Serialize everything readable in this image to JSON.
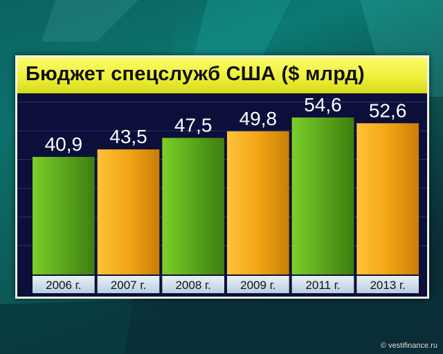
{
  "header": {
    "title": "Бюджет спецслужб США ($ млрд)"
  },
  "footer": {
    "credit": "© vestifinance.ru"
  },
  "colors": {
    "green": "#5aa61c",
    "orange": "#f2a516",
    "title_bg": "#eef03a",
    "panel_bg": "#0b0f3a",
    "label_bg": "#cfe0ee"
  },
  "chart_data": {
    "type": "bar",
    "title": "Бюджет спецслужб США ($ млрд)",
    "categories": [
      "2006 г.",
      "2007 г.",
      "2008 г.",
      "2009 г.",
      "2011 г.",
      "2013 г."
    ],
    "values": [
      40.9,
      43.5,
      47.5,
      49.8,
      54.6,
      52.6
    ],
    "value_labels": [
      "40,9",
      "43,5",
      "47,5",
      "49,8",
      "54,6",
      "52,6"
    ],
    "bar_colors": [
      "green",
      "orange",
      "green",
      "orange",
      "green",
      "orange"
    ],
    "xlabel": "",
    "ylabel": "",
    "ylim": [
      0,
      63
    ],
    "grid": true,
    "legend": "none"
  }
}
